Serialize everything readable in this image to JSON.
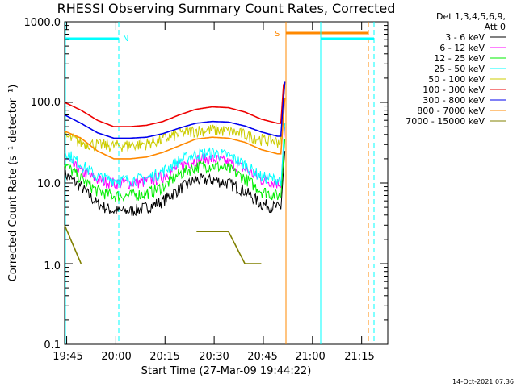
{
  "chart_data": {
    "type": "line",
    "title": "RHESSI Observing Summary Count Rates, Corrected",
    "xlabel": "Start Time (27-Mar-09 19:44:22)",
    "ylabel": "Corrected Count Rate (s⁻¹ detector⁻¹)",
    "yscale": "log",
    "ylim": [
      0.1,
      1000.0
    ],
    "xlim": [
      "19:44:22",
      "21:23:00"
    ],
    "x_ticks": [
      "19:45",
      "20:00",
      "20:15",
      "20:30",
      "20:45",
      "21:00",
      "21:15"
    ],
    "y_ticks": [
      "0.1",
      "1.0",
      "10.0",
      "100.0",
      "1000.0"
    ],
    "grid": false,
    "legend_position": "top-right",
    "legend_header": [
      "Det 1,3,4,5,6,9,",
      "Att 0"
    ],
    "timestamp": "14-Oct-2021 07:36",
    "x_times_min": [
      0,
      5,
      10,
      15,
      20,
      25,
      30,
      35,
      40,
      45,
      50,
      55,
      60,
      65,
      66
    ],
    "series": [
      {
        "name": "3 - 6 keV",
        "color": "#000000",
        "values": [
          13,
          9,
          5.5,
          4.5,
          4.5,
          5,
          6,
          8.5,
          11,
          11,
          10,
          8,
          5.5,
          5,
          5
        ]
      },
      {
        "name": "6 - 12 keV",
        "color": "#ff00ff",
        "values": [
          20,
          14,
          11,
          10,
          10,
          10.5,
          12,
          16,
          19.5,
          20,
          18,
          15,
          11,
          10,
          10
        ]
      },
      {
        "name": "12 - 25 keV",
        "color": "#00ee00",
        "values": [
          17,
          11.5,
          8,
          7,
          7,
          7.5,
          9,
          13,
          16,
          16.5,
          15,
          11.5,
          8,
          7,
          7
        ]
      },
      {
        "name": "25 - 50 keV",
        "color": "#00ffff",
        "values": [
          25,
          17,
          12,
          11,
          11,
          11.5,
          14,
          19,
          23,
          24,
          22,
          17,
          12,
          11,
          11
        ]
      },
      {
        "name": "50 - 100 keV",
        "color": "#cccc00",
        "values": [
          38,
          32,
          30,
          29,
          29.5,
          31,
          35,
          41,
          45,
          46,
          44,
          40,
          35,
          33,
          33
        ]
      },
      {
        "name": "100 - 300 keV",
        "color": "#ee0000",
        "values": [
          100,
          80,
          60,
          50,
          50,
          52,
          58,
          70,
          82,
          88,
          86,
          76,
          62,
          55,
          55
        ]
      },
      {
        "name": "300 - 800 keV",
        "color": "#0000ee",
        "values": [
          70,
          55,
          42,
          36,
          36,
          37,
          41,
          48,
          55,
          58,
          57,
          51,
          43,
          38,
          38
        ]
      },
      {
        "name": "800 - 7000 keV",
        "color": "#ff8800",
        "values": [
          44,
          36,
          25,
          20,
          20,
          21,
          24,
          29,
          35,
          37,
          36,
          32,
          26,
          23,
          23
        ]
      },
      {
        "name": "7000 - 15000 keV",
        "color": "#808000",
        "values": [
          3.0,
          1.0,
          null,
          null,
          null,
          null,
          null,
          null,
          2.5,
          2.5,
          2.5,
          1.0,
          1.0,
          null,
          null
        ]
      }
    ],
    "markers": [
      {
        "label": "N",
        "color": "#00ffff"
      },
      {
        "label": "S",
        "color": "#ff8800"
      }
    ]
  }
}
